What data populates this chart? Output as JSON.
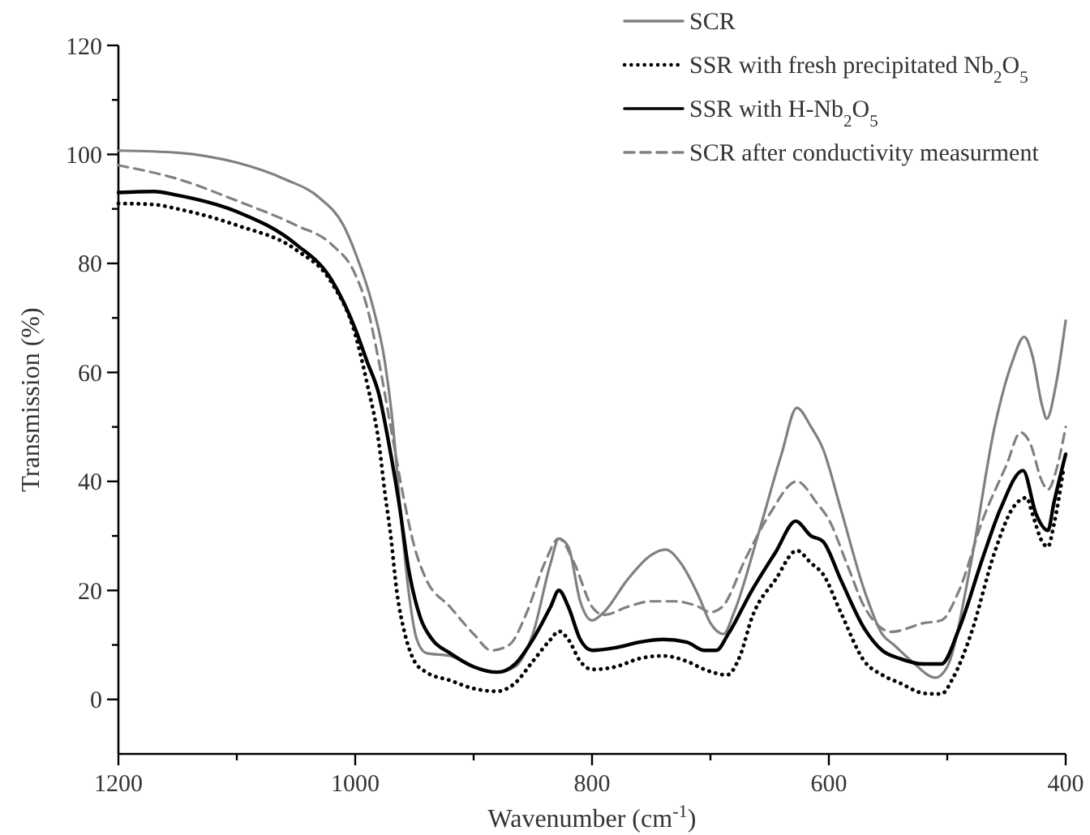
{
  "chart_data": {
    "type": "line",
    "xlabel": "Wavenumber (cm$^{-1}$)",
    "ylabel": "Transmission (%)",
    "xlim": [
      1200,
      400
    ],
    "xticks": [
      1200,
      {
        "value": 1100,
        "label": null
      },
      1000,
      {
        "value": 900,
        "label": null
      },
      800,
      {
        "value": 700,
        "label": null
      },
      600,
      {
        "value": 500,
        "label": null
      },
      400
    ],
    "ylim": [
      -10,
      120
    ],
    "yticks": [
      0,
      {
        "value": 10,
        "label": null
      },
      20,
      {
        "value": 30,
        "label": null
      },
      40,
      {
        "value": 50,
        "label": null
      },
      60,
      {
        "value": 70,
        "label": null
      },
      80,
      {
        "value": 90,
        "label": null
      },
      100,
      {
        "value": 110,
        "label": null
      },
      120
    ],
    "legend": "top right",
    "grid": false,
    "marker": "none",
    "series": [
      {
        "name": "SCR",
        "color": "#808080",
        "line_style": "solid",
        "x": [
          1200,
          1150,
          1100,
          1060,
          1030,
          1010,
          1000,
          985,
          975,
          968,
          962,
          955,
          948,
          940,
          920,
          900,
          880,
          865,
          850,
          835,
          828,
          820,
          810,
          800,
          790,
          770,
          750,
          738,
          725,
          710,
          700,
          689,
          680,
          660,
          640,
          627,
          615,
          605,
          590,
          570,
          555,
          545,
          530,
          510,
          500,
          480,
          460,
          445,
          435,
          428,
          420,
          416,
          408,
          400
        ],
        "values": [
          100.7,
          100.3,
          98.5,
          95.5,
          92,
          87,
          82,
          72,
          62,
          50,
          35,
          20,
          11,
          8.5,
          8,
          6,
          5,
          6,
          12,
          25,
          29.5,
          28,
          18,
          14.5,
          16,
          22,
          26.5,
          27.5,
          25,
          19,
          14,
          12,
          16,
          30,
          45,
          53.5,
          50,
          46,
          35,
          20,
          12,
          10,
          7,
          4,
          6,
          25,
          50,
          62,
          66.5,
          63,
          54,
          51.5,
          58,
          69.5
        ]
      },
      {
        "name": "SSR with fresh precipitated Nb$_{2}$O$_{5}$",
        "color": "#000000",
        "line_style": "dotted",
        "x": [
          1200,
          1170,
          1150,
          1100,
          1050,
          1020,
          1000,
          990,
          980,
          975,
          970,
          965,
          958,
          950,
          940,
          920,
          900,
          880,
          865,
          850,
          835,
          828,
          820,
          810,
          800,
          780,
          760,
          740,
          720,
          705,
          686,
          675,
          665,
          645,
          627,
          615,
          605,
          590,
          570,
          555,
          540,
          519,
          505,
          495,
          480,
          460,
          445,
          433,
          428,
          420,
          415,
          410,
          402
        ],
        "values": [
          91,
          90.8,
          90,
          87,
          82.5,
          76.5,
          67,
          58,
          47,
          38,
          30,
          20,
          12,
          7,
          5,
          3.5,
          2,
          1.5,
          3,
          7,
          11,
          12.5,
          11,
          7,
          5.5,
          6,
          7.5,
          8,
          7,
          5.5,
          4.5,
          8,
          15,
          22,
          27.3,
          25,
          23,
          16,
          7,
          4.5,
          3,
          1.1,
          1,
          4,
          12,
          27,
          35,
          37,
          34,
          29,
          28,
          32,
          42
        ]
      },
      {
        "name": "SSR with H-Nb$_{2}$O$_{5}$",
        "color": "#000000",
        "line_style": "solid",
        "x": [
          1200,
          1170,
          1150,
          1100,
          1050,
          1020,
          1000,
          990,
          980,
          970,
          963,
          955,
          945,
          935,
          920,
          900,
          880,
          865,
          850,
          835,
          828,
          820,
          810,
          800,
          780,
          760,
          740,
          720,
          705,
          695,
          685,
          665,
          645,
          628,
          615,
          605,
          590,
          570,
          555,
          540,
          520,
          505,
          490,
          470,
          455,
          436,
          425,
          415,
          410,
          400
        ],
        "values": [
          93,
          93.2,
          92.5,
          89.5,
          83.5,
          77,
          68,
          62,
          56,
          45,
          36,
          24,
          15,
          11,
          8.5,
          6,
          5,
          6.5,
          11,
          17,
          20,
          17,
          11,
          9,
          9.5,
          10.5,
          11,
          10.5,
          9,
          9,
          12,
          20,
          27,
          32.7,
          30,
          29,
          22,
          13,
          9,
          7.5,
          6.5,
          6.5,
          13,
          26,
          35,
          42,
          34,
          31,
          36,
          45
        ]
      },
      {
        "name": "SCR after conductivity measurment",
        "color": "#808080",
        "line_style": "dashed",
        "x": [
          1200,
          1150,
          1100,
          1050,
          1020,
          1000,
          990,
          980,
          970,
          960,
          950,
          940,
          920,
          900,
          885,
          870,
          855,
          840,
          828,
          815,
          800,
          790,
          770,
          750,
          730,
          710,
          700,
          690,
          670,
          650,
          627,
          610,
          600,
          585,
          570,
          555,
          547,
          520,
          505,
          490,
          470,
          450,
          438,
          430,
          420,
          415,
          408,
          400
        ],
        "values": [
          98,
          95.5,
          91.5,
          87,
          83.5,
          78,
          72,
          62,
          50,
          38,
          28,
          22,
          17,
          12,
          9,
          10,
          16,
          25,
          29.5,
          25,
          17,
          15.5,
          17,
          18,
          18,
          17,
          16,
          17,
          26,
          34,
          40,
          36,
          33,
          25,
          17,
          13,
          12.4,
          14,
          14.5,
          20,
          33,
          43,
          49,
          47,
          40,
          38.5,
          42,
          50
        ]
      }
    ]
  }
}
